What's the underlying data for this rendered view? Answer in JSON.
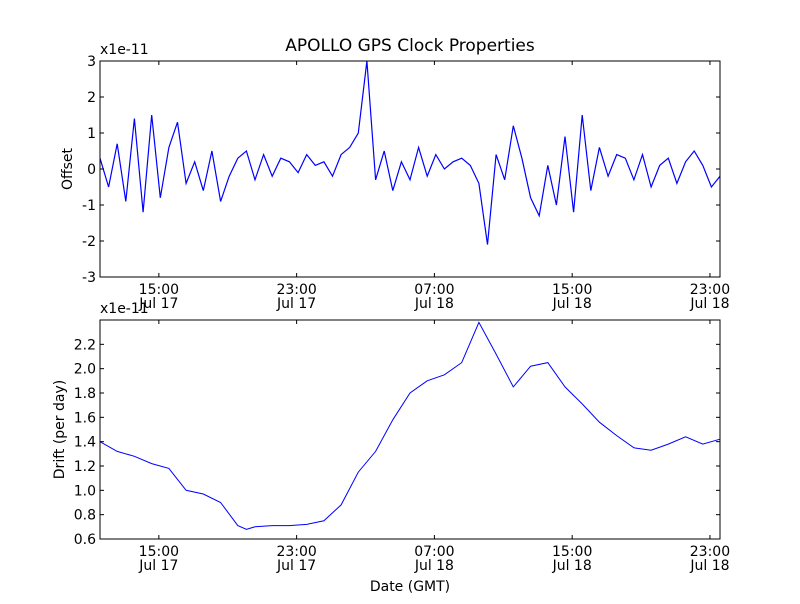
{
  "title": "APOLLO GPS Clock Properties",
  "x_tick_labels": [
    {
      "time": "15:00",
      "date": "Jul 17"
    },
    {
      "time": "23:00",
      "date": "Jul 17"
    },
    {
      "time": "07:00",
      "date": "Jul 18"
    },
    {
      "time": "15:00",
      "date": "Jul 18"
    },
    {
      "time": "23:00",
      "date": "Jul 18"
    }
  ],
  "xlabel": "Date (GMT)",
  "colors": {
    "line": "#0000ff",
    "axes": "#000000",
    "background": "#ffffff"
  },
  "chart_data": [
    {
      "type": "line",
      "ylabel": "Offset",
      "scale_label": "x1e-11",
      "xlim": [
        "Jul 17 11:35",
        "Jul 18 23:40"
      ],
      "ylim": [
        -3,
        3
      ],
      "y_ticks": [
        "-3",
        "-2",
        "-1",
        "0",
        "1",
        "2",
        "3"
      ],
      "grid": false,
      "series": [
        {
          "x_hours": [
            0,
            0.5,
            1,
            1.5,
            2,
            2.5,
            3,
            3.5,
            4,
            4.5,
            5,
            5.5,
            6,
            6.5,
            7,
            7.5,
            8,
            8.5,
            9,
            9.5,
            10,
            10.5,
            11,
            11.5,
            12,
            12.5,
            13,
            13.5,
            14,
            14.5,
            15,
            15.5,
            16,
            16.5,
            17,
            17.5,
            18,
            18.5,
            19,
            19.5,
            20,
            20.5,
            21,
            21.5,
            22,
            22.5,
            23,
            23.5,
            24,
            24.5,
            25,
            25.5,
            26,
            26.5,
            27,
            27.5,
            28,
            28.5,
            29,
            29.5,
            30,
            30.5,
            31,
            31.5,
            32,
            32.5,
            33,
            33.5,
            34,
            34.5,
            35,
            35.5,
            36
          ],
          "values": [
            0.3,
            -0.5,
            0.7,
            -0.9,
            1.4,
            -1.2,
            1.5,
            -0.8,
            0.6,
            1.3,
            -0.4,
            0.2,
            -0.6,
            0.5,
            -0.9,
            -0.2,
            0.3,
            0.5,
            -0.3,
            0.4,
            -0.2,
            0.3,
            0.2,
            -0.1,
            0.4,
            0.1,
            0.2,
            -0.2,
            0.4,
            0.6,
            1.0,
            3.0,
            -0.3,
            0.5,
            -0.6,
            0.2,
            -0.3,
            0.6,
            -0.2,
            0.4,
            0.0,
            0.2,
            0.3,
            0.1,
            -0.4,
            -2.1,
            0.4,
            -0.3,
            1.2,
            0.3,
            -0.8,
            -1.3,
            0.1,
            -1.0,
            0.9,
            -1.2,
            1.5,
            -0.6,
            0.6,
            -0.2,
            0.4,
            0.3,
            -0.3,
            0.4,
            -0.5,
            0.1,
            0.3,
            -0.4,
            0.2,
            0.5,
            0.1,
            -0.5,
            -0.2
          ]
        }
      ]
    },
    {
      "type": "line",
      "ylabel": "Drift (per day)",
      "scale_label": "x1e-11",
      "xlim": [
        "Jul 17 11:35",
        "Jul 18 23:40"
      ],
      "ylim": [
        0.6,
        2.4
      ],
      "y_ticks": [
        "0.6",
        "0.8",
        "1.0",
        "1.2",
        "1.4",
        "1.6",
        "1.8",
        "2.0",
        "2.2"
      ],
      "grid": false,
      "series": [
        {
          "x_hours": [
            0,
            1,
            2,
            3,
            4,
            5,
            6,
            7,
            8,
            8.5,
            9,
            10,
            11,
            12,
            13,
            14,
            15,
            16,
            17,
            18,
            19,
            20,
            21,
            22,
            23,
            24,
            25,
            26,
            27,
            28,
            29,
            30,
            31,
            32,
            33,
            34,
            35,
            36
          ],
          "values": [
            1.4,
            1.32,
            1.28,
            1.22,
            1.18,
            1.0,
            0.97,
            0.9,
            0.71,
            0.68,
            0.7,
            0.71,
            0.71,
            0.72,
            0.75,
            0.88,
            1.15,
            1.32,
            1.58,
            1.8,
            1.9,
            1.95,
            2.05,
            2.38,
            2.12,
            1.85,
            2.02,
            2.05,
            1.85,
            1.71,
            1.56,
            1.45,
            1.35,
            1.33,
            1.38,
            1.44,
            1.38,
            1.42
          ]
        }
      ]
    }
  ]
}
